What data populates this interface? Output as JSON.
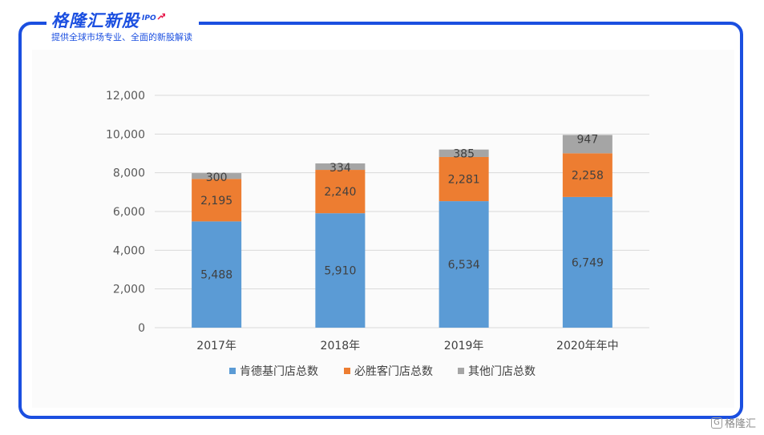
{
  "brand": {
    "title": "格隆汇新股",
    "tag": "IPO",
    "subtitle": "提供全球市场专业、全面的新股解读"
  },
  "watermark": {
    "icon": "brand-logo-icon",
    "text": "格隆汇"
  },
  "chart_data": {
    "type": "bar",
    "stacked": true,
    "categories": [
      "2017年",
      "2018年",
      "2019年",
      "2020年年中"
    ],
    "series": [
      {
        "name": "肯德基门店总数",
        "color": "#5b9bd5",
        "values": [
          5488,
          5910,
          6534,
          6749
        ],
        "labels": [
          "5,488",
          "5,910",
          "6,534",
          "6,749"
        ]
      },
      {
        "name": "必胜客门店总数",
        "color": "#ed7d31",
        "values": [
          2195,
          2240,
          2281,
          2258
        ],
        "labels": [
          "2,195",
          "2,240",
          "2,281",
          "2,258"
        ]
      },
      {
        "name": "其他门店总数",
        "color": "#a5a5a5",
        "values": [
          300,
          334,
          385,
          947
        ],
        "labels": [
          "300",
          "334",
          "385",
          "947"
        ]
      }
    ],
    "ylim": [
      0,
      12000
    ],
    "yticks": [
      "0",
      "2,000",
      "4,000",
      "6,000",
      "8,000",
      "10,000",
      "12,000"
    ],
    "ytick_values": [
      0,
      2000,
      4000,
      6000,
      8000,
      10000,
      12000
    ],
    "grid": true,
    "legend": "bottom"
  }
}
